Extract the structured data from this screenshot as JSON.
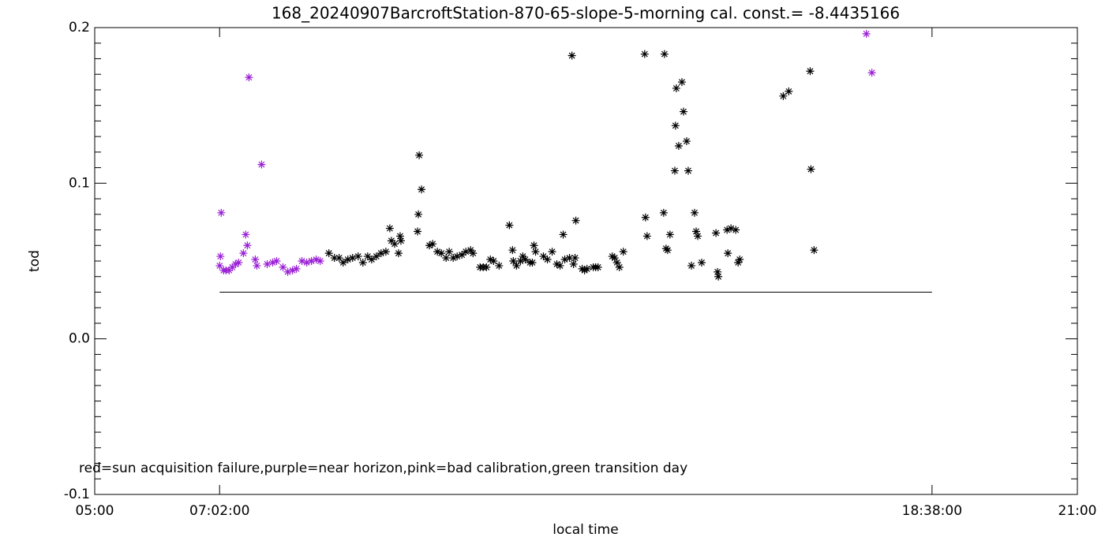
{
  "chart_data": {
    "type": "scatter",
    "title": "168_20240907BarcroftStation-870-65-slope-5-morning cal. const.= -8.4435166",
    "x_label": "local time",
    "y_label": "tod",
    "annotation": "red=sun acquisition failure,purple=near horizon,pink=bad calibration,green transition day",
    "xlim": [
      5,
      21
    ],
    "ylim": [
      -0.1,
      0.2
    ],
    "xticks": [
      {
        "value": 5,
        "label": "05:00"
      },
      {
        "value": 7.0333,
        "label": "07:02:00"
      },
      {
        "value": 18.6333,
        "label": "18:38:00"
      },
      {
        "value": 21,
        "label": "21:00"
      }
    ],
    "yticks": [
      -0.1,
      {
        "value": 0,
        "label": "0.0"
      },
      0.1,
      0.2
    ],
    "yminorticks": [
      -0.09,
      -0.08,
      -0.07,
      -0.06,
      -0.05,
      -0.04,
      -0.03,
      -0.02,
      -0.01,
      0.01,
      0.02,
      0.03,
      0.04,
      0.05,
      0.06,
      0.07,
      0.08,
      0.09,
      0.11,
      0.12,
      0.13,
      0.14,
      0.15,
      0.16,
      0.17,
      0.18,
      0.19
    ],
    "threshold": {
      "value": 0.03,
      "x": [
        7.0333,
        18.6333
      ],
      "color": "#000000"
    },
    "series": [
      {
        "color": "#9a1fd6",
        "x": [
          7.034,
          7.047,
          7.06,
          7.099,
          7.137,
          7.189,
          7.24,
          7.292,
          7.343,
          7.421,
          7.459,
          7.485,
          7.511,
          7.614,
          7.64,
          7.717,
          7.808,
          7.898,
          7.962,
          8.065,
          8.143,
          8.22,
          8.284,
          8.374,
          8.452,
          8.529,
          8.606,
          8.671,
          17.564,
          17.654
        ],
        "values": [
          0.047,
          0.053,
          0.081,
          0.044,
          0.044,
          0.044,
          0.046,
          0.048,
          0.049,
          0.055,
          0.067,
          0.06,
          0.168,
          0.051,
          0.047,
          0.112,
          0.048,
          0.049,
          0.05,
          0.046,
          0.043,
          0.044,
          0.045,
          0.05,
          0.049,
          0.05,
          0.051,
          0.05,
          0.196,
          0.171
        ]
      },
      {
        "color": "#000000",
        "x": [
          8.813,
          8.903,
          8.98,
          9.045,
          9.122,
          9.199,
          9.289,
          9.367,
          9.444,
          9.509,
          9.586,
          9.663,
          9.741,
          9.805,
          9.831,
          9.883,
          9.947,
          9.973,
          9.986,
          10.257,
          10.27,
          10.283,
          10.321,
          10.45,
          10.502,
          10.579,
          10.644,
          10.721,
          10.772,
          10.837,
          10.901,
          10.978,
          11.043,
          11.12,
          11.159,
          11.275,
          11.326,
          11.378,
          11.442,
          11.494,
          11.584,
          11.752,
          11.803,
          11.816,
          11.868,
          11.932,
          11.971,
          12.01,
          12.087,
          12.126,
          12.152,
          12.178,
          12.306,
          12.371,
          12.448,
          12.525,
          12.577,
          12.628,
          12.654,
          12.731,
          12.77,
          12.796,
          12.821,
          12.834,
          12.937,
          12.976,
          13.015,
          13.118,
          13.157,
          13.195,
          13.427,
          13.466,
          13.504,
          13.543,
          13.607,
          13.955,
          13.968,
          13.994,
          14.264,
          14.277,
          14.303,
          14.329,
          14.367,
          14.445,
          14.457,
          14.47,
          14.509,
          14.561,
          14.587,
          14.638,
          14.664,
          14.716,
          14.767,
          14.793,
          14.819,
          14.883,
          15.115,
          15.141,
          15.154,
          15.296,
          15.309,
          15.36,
          15.438,
          15.476,
          15.502,
          16.211,
          16.301,
          16.649,
          16.662,
          16.713
        ],
        "values": [
          0.055,
          0.052,
          0.052,
          0.049,
          0.051,
          0.052,
          0.053,
          0.049,
          0.053,
          0.051,
          0.053,
          0.055,
          0.056,
          0.071,
          0.063,
          0.061,
          0.055,
          0.066,
          0.063,
          0.069,
          0.08,
          0.118,
          0.096,
          0.06,
          0.061,
          0.056,
          0.055,
          0.052,
          0.056,
          0.052,
          0.053,
          0.054,
          0.056,
          0.057,
          0.055,
          0.046,
          0.046,
          0.046,
          0.051,
          0.05,
          0.047,
          0.073,
          0.057,
          0.05,
          0.047,
          0.05,
          0.053,
          0.051,
          0.049,
          0.049,
          0.06,
          0.056,
          0.053,
          0.051,
          0.056,
          0.048,
          0.047,
          0.067,
          0.051,
          0.052,
          0.182,
          0.048,
          0.052,
          0.076,
          0.045,
          0.044,
          0.045,
          0.046,
          0.046,
          0.046,
          0.053,
          0.052,
          0.049,
          0.046,
          0.056,
          0.183,
          0.078,
          0.066,
          0.081,
          0.183,
          0.058,
          0.057,
          0.067,
          0.108,
          0.137,
          0.161,
          0.124,
          0.165,
          0.146,
          0.127,
          0.108,
          0.047,
          0.081,
          0.069,
          0.066,
          0.049,
          0.068,
          0.043,
          0.04,
          0.07,
          0.055,
          0.071,
          0.07,
          0.049,
          0.051,
          0.156,
          0.159,
          0.172,
          0.109,
          0.057
        ]
      }
    ]
  }
}
